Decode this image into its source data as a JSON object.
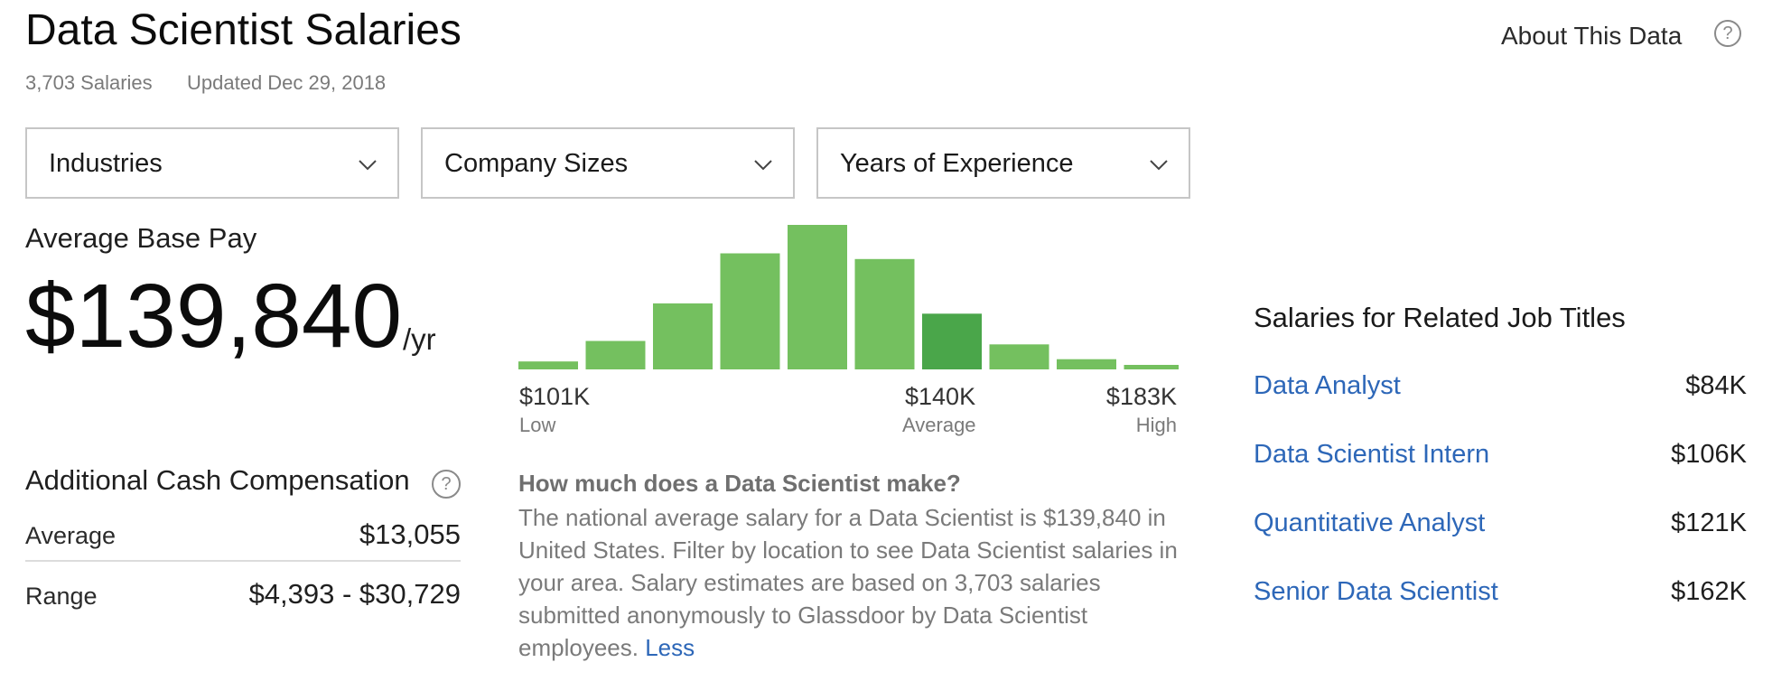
{
  "header": {
    "title": "Data Scientist Salaries",
    "salary_count": "3,703 Salaries",
    "updated": "Updated Dec 29, 2018",
    "about_label": "About This Data",
    "help_glyph": "?"
  },
  "filters": [
    {
      "label": "Industries"
    },
    {
      "label": "Company Sizes"
    },
    {
      "label": "Years of Experience"
    }
  ],
  "base_pay": {
    "heading": "Average Base Pay",
    "amount": "$139,840",
    "unit": "/yr"
  },
  "chart_data": {
    "type": "bar",
    "title": "",
    "values": [
      7,
      25,
      58,
      102,
      127,
      97,
      49,
      22,
      9,
      4
    ],
    "highlight_index": 6,
    "colors": {
      "normal": "#74c05f",
      "highlight": "#4aa64a"
    },
    "x_labels": [
      {
        "value": "$101K",
        "caption": "Low"
      },
      {
        "value": "$140K",
        "caption": "Average"
      },
      {
        "value": "$183K",
        "caption": "High"
      }
    ]
  },
  "additional_cash": {
    "heading": "Additional Cash Compensation",
    "help_glyph": "?",
    "rows": [
      {
        "label": "Average",
        "value": "$13,055"
      },
      {
        "label": "Range",
        "value": "$4,393 - $30,729"
      }
    ]
  },
  "description": {
    "question": "How much does a Data Scientist make?",
    "text": "The national average salary for a Data Scientist is $139,840 in United States. Filter by location to see Data Scientist salaries in your area. Salary estimates are based on 3,703 salaries submitted anonymously to Glassdoor by Data Scientist employees.",
    "less_label": "Less"
  },
  "related": {
    "heading": "Salaries for Related Job Titles",
    "items": [
      {
        "title": "Data Analyst",
        "salary": "$84K"
      },
      {
        "title": "Data Scientist Intern",
        "salary": "$106K"
      },
      {
        "title": "Quantitative Analyst",
        "salary": "$121K"
      },
      {
        "title": "Senior Data Scientist",
        "salary": "$162K"
      }
    ]
  },
  "icons": {
    "dropdown": "chevron-down-icon",
    "help": "help-circle-icon"
  },
  "colors": {
    "link": "#2d67b8",
    "bar": "#74c05f",
    "bar_highlight": "#4aa64a"
  }
}
